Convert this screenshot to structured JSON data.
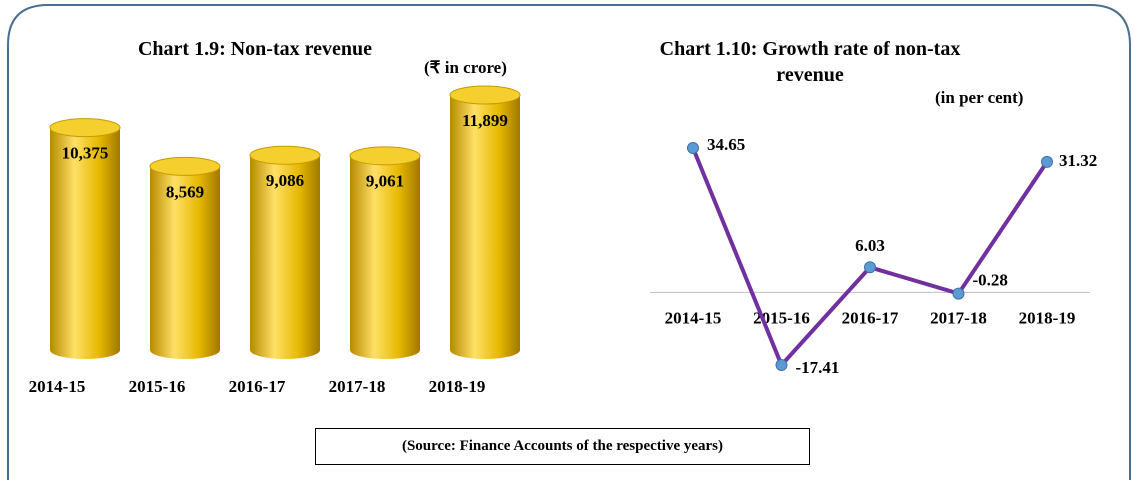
{
  "chart_data": [
    {
      "type": "cylinder-bar",
      "title": "Chart 1.9: Non-tax revenue",
      "unit": "(₹ in crore)",
      "categories": [
        "2014-15",
        "2015-16",
        "2016-17",
        "2017-18",
        "2018-19"
      ],
      "values": [
        10375,
        8569,
        9086,
        9061,
        11899
      ],
      "value_labels": [
        "10,375",
        "8,569",
        "9,086",
        "9,061",
        "11,899"
      ],
      "color": "#e6b800"
    },
    {
      "type": "line",
      "title": "Chart 1.10: Growth rate of non-tax revenue",
      "unit": "(in per cent)",
      "categories": [
        "2014-15",
        "2015-16",
        "2016-17",
        "2017-18",
        "2018-19"
      ],
      "values": [
        34.65,
        -17.41,
        6.03,
        -0.28,
        31.32
      ],
      "color": "#7030a0",
      "marker_color": "#5b9bd5"
    }
  ],
  "source": "(Source: Finance Accounts of the respective years)"
}
